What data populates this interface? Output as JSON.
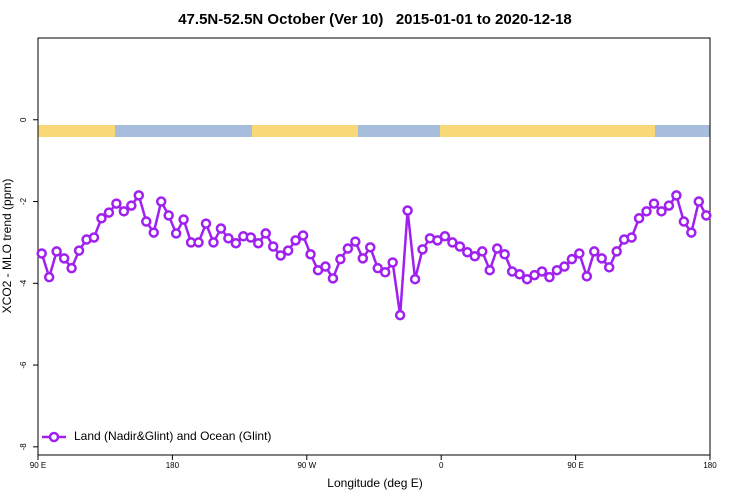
{
  "chart_data": {
    "type": "line",
    "title": "47.5N-52.5N October (Ver 10)   2015-01-01 to 2020-12-18",
    "xlabel": "Longitude (deg E)",
    "ylabel": "XCO2 - MLO trend (ppm)",
    "xlim": [
      90,
      540
    ],
    "xticks": [
      {
        "value": 90,
        "label": "90 E"
      },
      {
        "value": 180,
        "label": "180"
      },
      {
        "value": 270,
        "label": "90 W"
      },
      {
        "value": 360,
        "label": "0"
      },
      {
        "value": 450,
        "label": "90 E"
      },
      {
        "value": 540,
        "label": "180"
      }
    ],
    "ylim": [
      -8.2,
      2
    ],
    "yticks": [
      0,
      -2,
      -4,
      -6,
      -8
    ],
    "legend": "bottom-left",
    "x": [
      92.5,
      97.5,
      102.5,
      107.5,
      112.5,
      117.5,
      122.5,
      127.5,
      132.5,
      137.5,
      142.5,
      147.5,
      152.5,
      157.5,
      162.5,
      167.5,
      172.5,
      177.5,
      182.5,
      187.5,
      192.5,
      197.5,
      202.5,
      207.5,
      212.5,
      217.5,
      222.5,
      227.5,
      232.5,
      237.5,
      242.5,
      247.5,
      252.5,
      257.5,
      262.5,
      267.5,
      272.5,
      277.5,
      282.5,
      287.5,
      292.5,
      297.5,
      302.5,
      307.5,
      312.5,
      317.5,
      322.5,
      327.5,
      332.5,
      337.5,
      342.5,
      347.5,
      352.5,
      357.5,
      362.5,
      367.5,
      372.5,
      377.5,
      382.5,
      387.5,
      392.5,
      397.5,
      402.5,
      407.5,
      412.5,
      417.5,
      422.5,
      427.5,
      432.5,
      437.5,
      442.5,
      447.5,
      452.5,
      457.5,
      462.5,
      467.5,
      472.5,
      477.5,
      482.5,
      487.5,
      492.5,
      497.5,
      502.5,
      507.5,
      512.5,
      517.5,
      522.5,
      527.5,
      532.5,
      537.5
    ],
    "series": [
      {
        "name": "Land (Nadir&Glint) and Ocean (Glint)",
        "color": "#a020f0",
        "values": [
          -3.27,
          -3.85,
          -3.22,
          -3.39,
          -3.63,
          -3.2,
          -2.93,
          -2.88,
          -2.41,
          -2.27,
          -2.05,
          -2.24,
          -2.1,
          -1.85,
          -2.49,
          -2.76,
          -2.0,
          -2.34,
          -2.78,
          -2.44,
          -3.0,
          -3.0,
          -2.54,
          -3.0,
          -2.66,
          -2.9,
          -3.02,
          -2.85,
          -2.88,
          -3.02,
          -2.78,
          -3.1,
          -3.32,
          -3.2,
          -2.95,
          -2.83,
          -3.29,
          -3.68,
          -3.59,
          -3.88,
          -3.41,
          -3.15,
          -2.98,
          -3.39,
          -3.12,
          -3.63,
          -3.73,
          -3.49,
          -4.78,
          -2.22,
          -3.9,
          -3.17,
          -2.9,
          -2.95,
          -2.85,
          -3.0,
          -3.1,
          -3.24,
          -3.34,
          -3.22,
          -3.68,
          -3.15,
          -3.29,
          -3.71,
          -3.78,
          -3.9,
          -3.8,
          -3.71,
          -3.85,
          -3.68,
          -3.59,
          -3.41,
          -3.27,
          -3.83,
          -3.22,
          -3.39,
          -3.61,
          -3.22,
          -2.93,
          -2.88,
          -2.41,
          -2.24,
          -2.05,
          -2.24,
          -2.1,
          -1.85,
          -2.49,
          -2.76,
          -2.0,
          -2.34
        ]
      }
    ]
  }
}
